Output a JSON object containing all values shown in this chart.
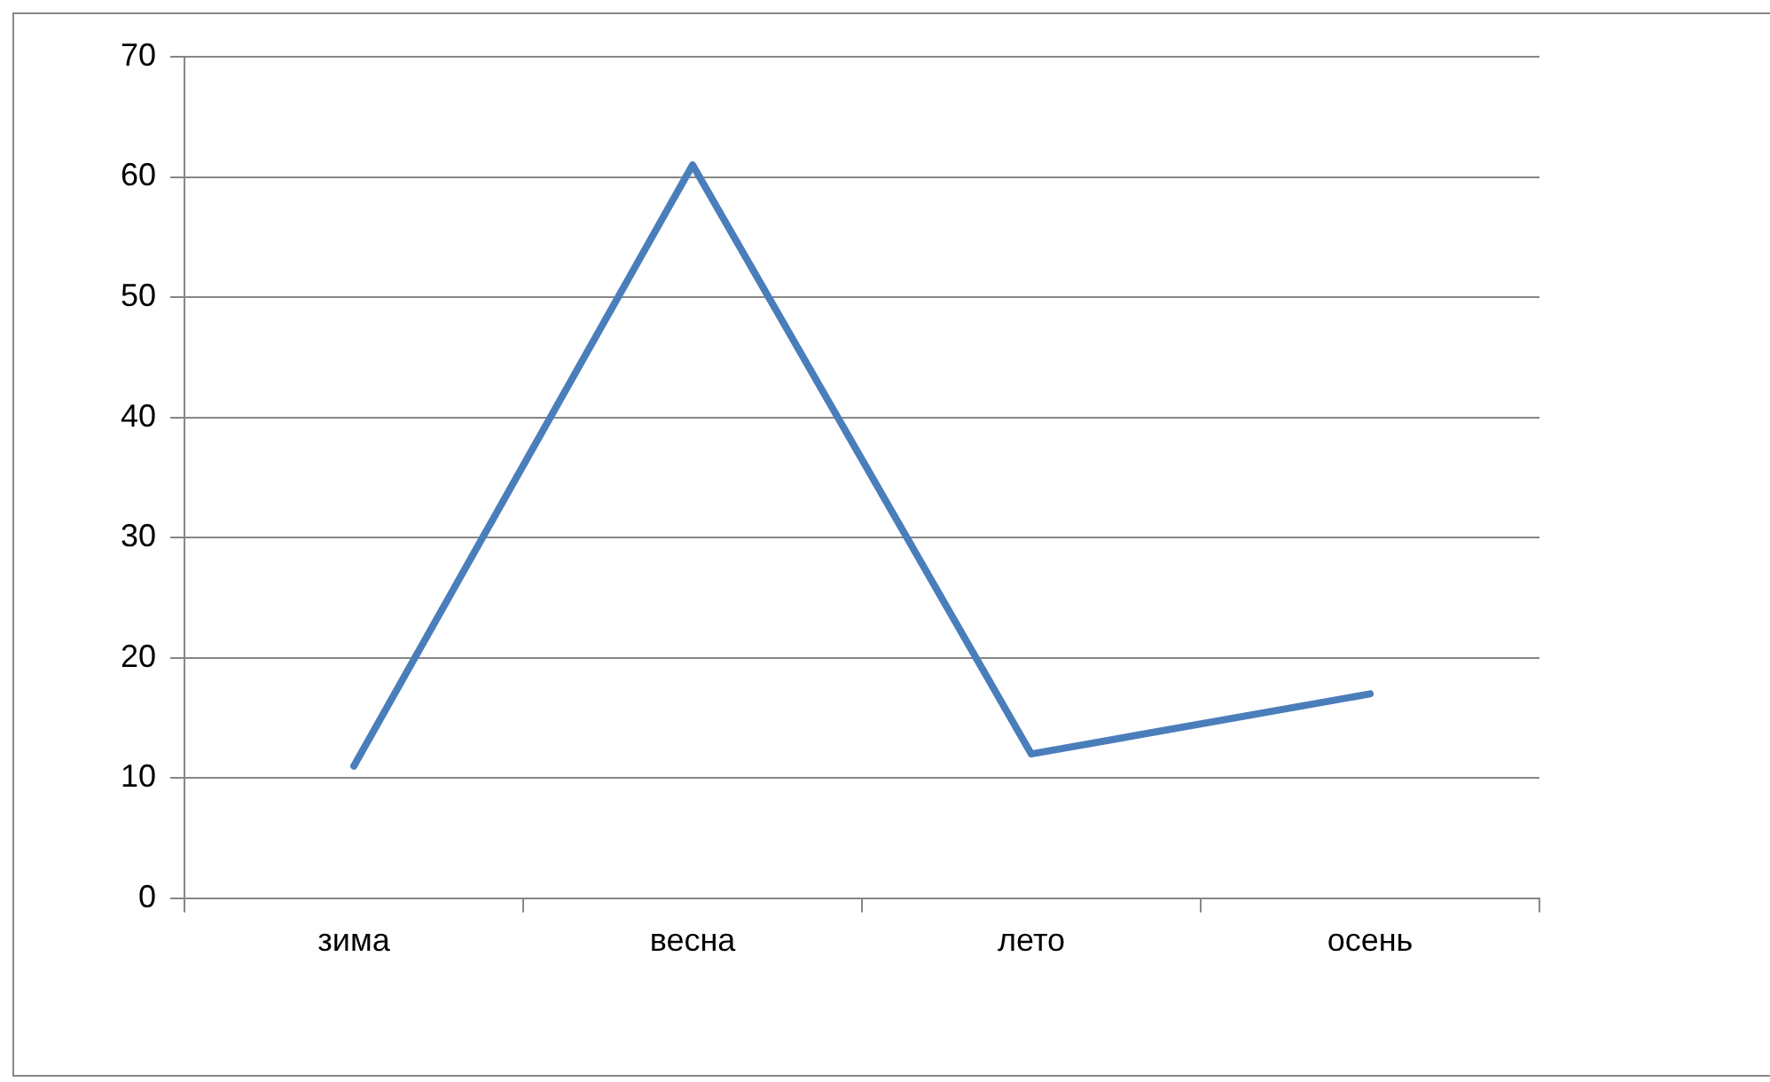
{
  "chart_data": {
    "type": "line",
    "categories": [
      "зима",
      "весна",
      "лето",
      "осень"
    ],
    "series": [
      {
        "color": "#4a7ebb",
        "values": [
          11,
          61,
          12,
          17
        ]
      }
    ],
    "ylim": [
      0,
      70
    ],
    "yticks": [
      0,
      10,
      20,
      30,
      40,
      50,
      60,
      70
    ],
    "grid": "y",
    "legend": false,
    "marker": "none"
  }
}
